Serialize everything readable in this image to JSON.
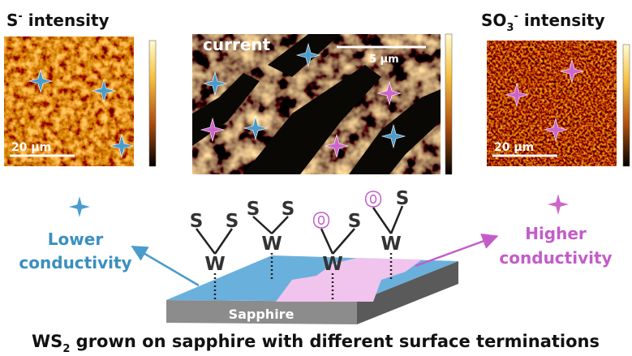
{
  "panels": [
    {
      "label": {
        "base": "S",
        "sup": "-",
        "rest": " intensity"
      },
      "scale_bar": "20 μm"
    },
    {
      "label": "current",
      "scale_bar": "5 μm"
    },
    {
      "label": {
        "base": "SO",
        "sub": "3",
        "sup": "-",
        "rest": " intensity"
      },
      "scale_bar": "20 μm"
    }
  ],
  "legend": {
    "lower": [
      "Lower",
      "conductivity"
    ],
    "higher": [
      "Higher",
      "conductivity"
    ]
  },
  "atoms": [
    "S",
    "S",
    "S",
    "S",
    "O",
    "S",
    "O",
    "S",
    "W",
    "W",
    "W",
    "W"
  ],
  "substrate": "Sapphire",
  "caption": {
    "pre": "WS",
    "sub": "2",
    "post": " grown on sapphire with different surface terminations"
  }
}
